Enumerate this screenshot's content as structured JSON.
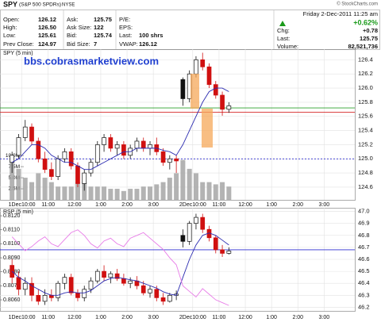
{
  "header": {
    "symbol": "SPY",
    "name": "(S&P 500 SPDRs)",
    "exchange": "NYSE",
    "copyright": "© StockCharts.com",
    "date": "Friday  2-Dec-2011  11:25 am",
    "change_pct": "+0.62%",
    "columns": [
      [
        {
          "label": "Open:",
          "value": "126.12"
        },
        {
          "label": "High:",
          "value": "126.50"
        },
        {
          "label": "Low:",
          "value": "125.61"
        },
        {
          "label": "Prev Close:",
          "value": "124.97"
        }
      ],
      [
        {
          "label": "Ask:",
          "value": "125.75"
        },
        {
          "label": "Ask Size:",
          "value": "122"
        },
        {
          "label": "Bid:",
          "value": "125.74"
        },
        {
          "label": "Bid Size:",
          "value": "7"
        }
      ],
      [
        {
          "label": "P/E:"
        },
        {
          "label": "EPS:"
        },
        {
          "label": "Last:",
          "value": "100 shrs"
        },
        {
          "label": "VWAP:",
          "value": "126.12"
        }
      ],
      [
        {
          "label": "Chg:",
          "value": "+0.78"
        },
        {
          "label": "Last:",
          "value": "125.75"
        },
        {
          "label": "Volume:",
          "value": "82,521,736"
        }
      ]
    ]
  },
  "annotation": "bbs.cobrasmarketview.com",
  "chart_data": [
    {
      "type": "candlestick",
      "title": "SPY (5 min)",
      "x": [
        1.5,
        4.5,
        7.5,
        10.5,
        13.5,
        16.5,
        19.5,
        22.5,
        25.5,
        28.5,
        31.5,
        34.5,
        37.5,
        40.5,
        43.5,
        46.5,
        49.5,
        52.5,
        55.5,
        58.5,
        61.5,
        64.5,
        67.5,
        70.5,
        73.5,
        76.5,
        79.5,
        82.5,
        85.5,
        88.5,
        91.5,
        94.5,
        97.5,
        100.5
      ],
      "open": [
        124.95,
        125.05,
        125.3,
        125.45,
        125.25,
        125.0,
        124.85,
        124.75,
        125.0,
        125.1,
        124.9,
        124.65,
        124.8,
        124.95,
        125.2,
        125.3,
        125.15,
        125.2,
        125.05,
        125.15,
        125.25,
        125.15,
        125.2,
        125.1,
        124.95,
        125.0,
        126.12,
        125.85,
        126.2,
        126.4,
        126.3,
        126.05,
        125.9,
        125.7
      ],
      "high": [
        125.1,
        125.35,
        125.55,
        125.5,
        125.3,
        125.1,
        124.95,
        125.05,
        125.15,
        125.15,
        124.95,
        124.85,
        125.0,
        125.25,
        125.35,
        125.35,
        125.25,
        125.25,
        125.2,
        125.3,
        125.3,
        125.25,
        125.3,
        125.15,
        125.05,
        125.05,
        126.15,
        126.25,
        126.45,
        126.5,
        126.35,
        126.1,
        125.95,
        125.8
      ],
      "low": [
        124.8,
        125.0,
        125.25,
        125.2,
        124.95,
        124.8,
        124.7,
        124.7,
        124.95,
        124.85,
        124.6,
        124.55,
        124.75,
        124.9,
        125.1,
        125.1,
        125.05,
        125.0,
        125.0,
        125.1,
        125.1,
        125.05,
        125.05,
        124.9,
        124.85,
        124.8,
        125.75,
        125.8,
        126.15,
        126.25,
        126.0,
        125.85,
        125.61,
        125.65
      ],
      "close": [
        125.05,
        125.3,
        125.45,
        125.25,
        125.0,
        124.85,
        124.75,
        125.0,
        125.1,
        124.9,
        124.65,
        124.8,
        124.95,
        125.2,
        125.3,
        125.15,
        125.2,
        125.05,
        125.15,
        125.25,
        125.15,
        125.2,
        125.1,
        124.95,
        125.0,
        124.97,
        125.85,
        126.2,
        126.4,
        126.3,
        126.05,
        125.9,
        125.7,
        125.75
      ],
      "lines": [
        {
          "color": "#2b2bb0",
          "values": [
            124.95,
            125.0,
            125.1,
            125.2,
            125.2,
            125.15,
            125.05,
            125.0,
            124.95,
            124.95,
            124.9,
            124.85,
            124.85,
            124.9,
            124.95,
            125.0,
            125.05,
            125.1,
            125.1,
            125.15,
            125.15,
            125.15,
            125.15,
            125.12,
            125.1,
            125.05,
            125.2,
            125.4,
            125.6,
            125.8,
            125.95,
            126.0,
            126.0,
            125.95
          ]
        }
      ],
      "volume": {
        "values": [
          9,
          7,
          5,
          4,
          6,
          5,
          4,
          3,
          3,
          3,
          4,
          4,
          3,
          3,
          3,
          2.5,
          2.5,
          2,
          2.5,
          2.5,
          3,
          3,
          3.5,
          4,
          5,
          6,
          9,
          7,
          6,
          4,
          4,
          3.5,
          4,
          3
        ],
        "color": "#a0a0a0",
        "lim": [
          0,
          34
        ],
        "ticks": [
          {
            "value": 2.5,
            "label": "2.5M"
          },
          {
            "value": 5,
            "label": "5.0M"
          },
          {
            "value": 7.5,
            "label": "7.5M"
          },
          {
            "value": 10,
            "label": "10.0M"
          }
        ]
      },
      "reference_lines": [
        {
          "value": 125.72,
          "color": "#2ca02c"
        },
        {
          "value": 125.66,
          "color": "#d62728"
        },
        {
          "value": 125.0,
          "color": "#2b2bd0",
          "dashed": true
        }
      ],
      "xlim": [
        -4,
        158
      ],
      "xticks": [
        {
          "value": 6,
          "label": "1Dec10:00"
        },
        {
          "value": 18,
          "label": "11:00"
        },
        {
          "value": 30,
          "label": "12:00"
        },
        {
          "value": 42,
          "label": "1:00"
        },
        {
          "value": 54,
          "label": "2:00"
        },
        {
          "value": 66,
          "label": "3:00"
        },
        {
          "value": 84,
          "label": "2Dec10:00"
        },
        {
          "value": 96,
          "label": "11:00"
        },
        {
          "value": 108,
          "label": "12:00"
        },
        {
          "value": 120,
          "label": "1:00"
        },
        {
          "value": 132,
          "label": "2:00"
        },
        {
          "value": 144,
          "label": "3:00"
        }
      ],
      "ylim": [
        124.42,
        126.55
      ],
      "yticks": [
        124.6,
        124.8,
        {
          "value": 125.0,
          "label": "125.0"
        },
        125.2,
        125.4,
        125.6,
        125.8,
        {
          "value": 126.0,
          "label": "126.0"
        },
        126.2,
        126.4
      ],
      "grid": true
    },
    {
      "type": "candlestick",
      "title": "RSP (5 min)",
      "x": [
        1.5,
        4.5,
        7.5,
        10.5,
        13.5,
        16.5,
        19.5,
        22.5,
        25.5,
        28.5,
        31.5,
        34.5,
        37.5,
        40.5,
        43.5,
        46.5,
        49.5,
        52.5,
        55.5,
        58.5,
        61.5,
        64.5,
        67.5,
        70.5,
        73.5,
        76.5,
        79.5,
        82.5,
        85.5,
        88.5,
        91.5,
        94.5,
        97.5,
        100.5
      ],
      "open": [
        46.55,
        46.45,
        46.35,
        46.4,
        46.3,
        46.25,
        46.3,
        46.28,
        46.4,
        46.45,
        46.32,
        46.28,
        46.35,
        46.42,
        46.5,
        46.45,
        46.48,
        46.44,
        46.4,
        46.42,
        46.38,
        46.32,
        46.35,
        46.28,
        46.25,
        46.3,
        46.8,
        46.75,
        46.9,
        46.95,
        46.85,
        46.78,
        46.68,
        46.65
      ],
      "high": [
        46.6,
        46.5,
        46.45,
        46.45,
        46.35,
        46.35,
        46.35,
        46.42,
        46.48,
        46.48,
        46.35,
        46.38,
        46.45,
        46.52,
        46.55,
        46.5,
        46.52,
        46.48,
        46.45,
        46.46,
        46.42,
        46.38,
        46.38,
        46.32,
        46.32,
        46.34,
        46.85,
        46.92,
        46.98,
        46.98,
        46.88,
        46.8,
        46.72,
        46.7
      ],
      "low": [
        46.4,
        46.3,
        46.3,
        46.25,
        46.22,
        46.22,
        46.25,
        46.25,
        46.35,
        46.3,
        46.25,
        46.25,
        46.32,
        46.4,
        46.42,
        46.4,
        46.42,
        46.38,
        46.36,
        46.35,
        46.3,
        46.28,
        46.25,
        46.22,
        46.24,
        46.26,
        46.7,
        46.72,
        46.85,
        46.82,
        46.75,
        46.65,
        46.62,
        46.64
      ],
      "close": [
        46.45,
        46.35,
        46.4,
        46.3,
        46.25,
        46.3,
        46.28,
        46.4,
        46.45,
        46.32,
        46.28,
        46.35,
        46.42,
        46.5,
        46.45,
        46.48,
        46.44,
        46.4,
        46.42,
        46.38,
        46.32,
        46.35,
        46.28,
        46.25,
        46.3,
        46.31,
        46.75,
        46.9,
        46.95,
        46.85,
        46.78,
        46.68,
        46.65,
        46.67
      ],
      "lines": [
        {
          "color": "#2b2bb0",
          "values": [
            46.5,
            46.45,
            46.42,
            46.38,
            46.35,
            46.32,
            46.3,
            46.3,
            46.32,
            46.33,
            46.32,
            46.32,
            46.34,
            46.38,
            46.42,
            46.44,
            46.45,
            46.44,
            46.43,
            46.42,
            46.4,
            46.38,
            46.36,
            46.33,
            46.31,
            46.3,
            46.45,
            46.6,
            46.72,
            46.8,
            46.82,
            46.8,
            46.76,
            46.72
          ]
        },
        {
          "color": "#e87de8",
          "axis": "y2",
          "values": [
            0.8105,
            0.81,
            0.8095,
            0.8098,
            0.8102,
            0.8105,
            0.81,
            0.8098,
            0.8103,
            0.8108,
            0.811,
            0.8106,
            0.81,
            0.8097,
            0.8102,
            0.8104,
            0.81,
            0.8098,
            0.8104,
            0.8106,
            0.8108,
            0.8104,
            0.81,
            0.8096,
            0.809,
            0.8085,
            0.807,
            0.8066,
            0.8062,
            0.8068,
            0.8064,
            0.806,
            0.8058,
            0.8056
          ]
        }
      ],
      "reference_lines": [
        {
          "value": 46.68,
          "color": "#2b2bd0"
        }
      ],
      "xlim": [
        -4,
        158
      ],
      "xticks": [
        {
          "value": 6,
          "label": "1Dec10:00"
        },
        {
          "value": 18,
          "label": "11:00"
        },
        {
          "value": 30,
          "label": "12:00"
        },
        {
          "value": 42,
          "label": "1:00"
        },
        {
          "value": 54,
          "label": "2:00"
        },
        {
          "value": 66,
          "label": "3:00"
        },
        {
          "value": 84,
          "label": "2Dec10:00"
        },
        {
          "value": 96,
          "label": "11:00"
        },
        {
          "value": 108,
          "label": "12:00"
        },
        {
          "value": 120,
          "label": "1:00"
        },
        {
          "value": 132,
          "label": "2:00"
        },
        {
          "value": 144,
          "label": "3:00"
        }
      ],
      "ylim": [
        46.17,
        47.03
      ],
      "yticks": [
        46.2,
        46.3,
        46.4,
        46.5,
        46.6,
        46.7,
        46.8,
        46.9,
        {
          "value": 47.0,
          "label": "47.0"
        }
      ],
      "y2lim": [
        0.80521,
        0.81257
      ],
      "y2ticks": [
        {
          "value": 0.806,
          "label": "0.8060"
        },
        {
          "value": 0.807,
          "label": "0.8070"
        },
        {
          "value": 0.808,
          "label": "0.8080"
        },
        {
          "value": 0.809,
          "label": "0.8090"
        },
        {
          "value": 0.81,
          "label": "0.8100"
        },
        {
          "value": 0.811,
          "label": "0.8110"
        },
        {
          "value": 0.812,
          "label": "0.8120"
        }
      ],
      "grid": true
    }
  ]
}
